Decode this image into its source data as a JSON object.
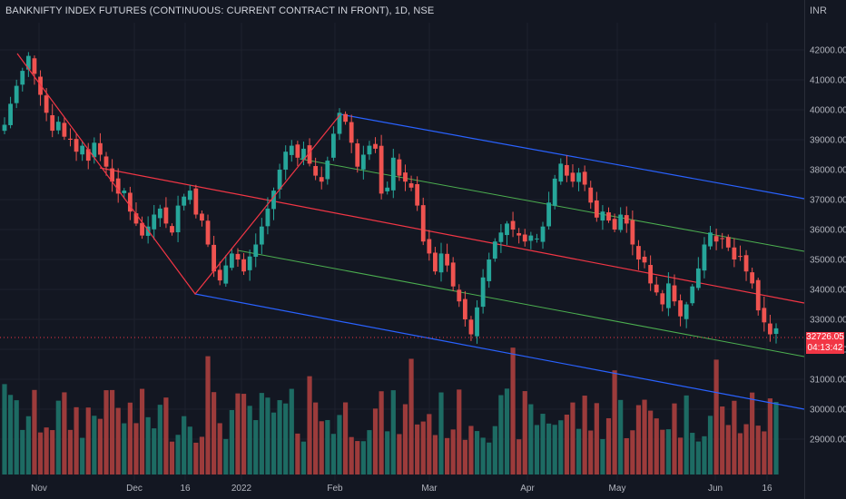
{
  "header": {
    "title": "BANKNIFTY INDEX FUTURES (CONTINUOUS: CURRENT CONTRACT IN FRONT), 1D, NSE",
    "currency": "INR"
  },
  "price_tag": {
    "last": "32726.05",
    "countdown": "04:13:42"
  },
  "colors": {
    "background": "#131722",
    "grid": "#1e222d",
    "up": "#26a69a",
    "down": "#ef5350",
    "volume_up": "#1d6b63",
    "volume_down": "#9c3b3b",
    "channel_mid": "#f23645",
    "channel_inner": "#4caf50",
    "channel_outer": "#2962ff",
    "last_price": "#f23645",
    "text": "#b2b5be"
  },
  "chart_data": {
    "type": "candlestick",
    "title": "BANKNIFTY INDEX FUTURES (CONTINUOUS: CURRENT CONTRACT IN FRONT), 1D, NSE",
    "unit": "INR",
    "ylim": [
      28200,
      43000
    ],
    "y_ticks": [
      "29000.00",
      "30000.00",
      "31000.00",
      "32000.00",
      "33000.00",
      "34000.00",
      "35000.00",
      "36000.00",
      "37000.00",
      "38000.00",
      "39000.00",
      "40000.00",
      "41000.00",
      "42000.00"
    ],
    "x_ticks": [
      "Nov",
      "Dec",
      "16",
      "2022",
      "Feb",
      "Mar",
      "Apr",
      "May",
      "Jun",
      "16"
    ],
    "grid": true,
    "volume_overlay": true,
    "last_price": 32726.05,
    "closes": [
      39500,
      40200,
      40800,
      41300,
      41800,
      41200,
      40500,
      39900,
      39300,
      39600,
      39100,
      39000,
      38600,
      38800,
      38300,
      38900,
      38500,
      38100,
      37600,
      37200,
      37300,
      36600,
      36200,
      35800,
      36100,
      36500,
      36700,
      36200,
      35900,
      36800,
      37100,
      37300,
      36500,
      36300,
      35500,
      34600,
      34300,
      34800,
      35200,
      35000,
      34600,
      35100,
      35500,
      36100,
      36700,
      37300,
      38000,
      38600,
      38800,
      38400,
      38700,
      38200,
      37800,
      37600,
      38300,
      39200,
      39900,
      39600,
      38900,
      38100,
      38500,
      38800,
      38700,
      37200,
      37400,
      38400,
      37800,
      37600,
      37400,
      36800,
      35600,
      35200,
      34600,
      35200,
      34800,
      34100,
      33600,
      33000,
      32500,
      33400,
      34400,
      35000,
      35600,
      35900,
      36200,
      36000,
      35800,
      35600,
      35800,
      35700,
      36100,
      36900,
      37700,
      38200,
      37800,
      37600,
      37900,
      37500,
      36900,
      36400,
      36600,
      36300,
      36000,
      36500,
      36200,
      35500,
      35000,
      34900,
      34200,
      33900,
      33500,
      34200,
      33600,
      33100,
      33500,
      34100,
      34700,
      35500,
      35900,
      35600,
      35700,
      35400,
      35000,
      35100,
      34600,
      34200,
      33300,
      32900,
      32500,
      32700
    ]
  },
  "annotations": {
    "trendline": "zigzag 41800 -> 34100 -> 39900",
    "regression_channel": true
  }
}
